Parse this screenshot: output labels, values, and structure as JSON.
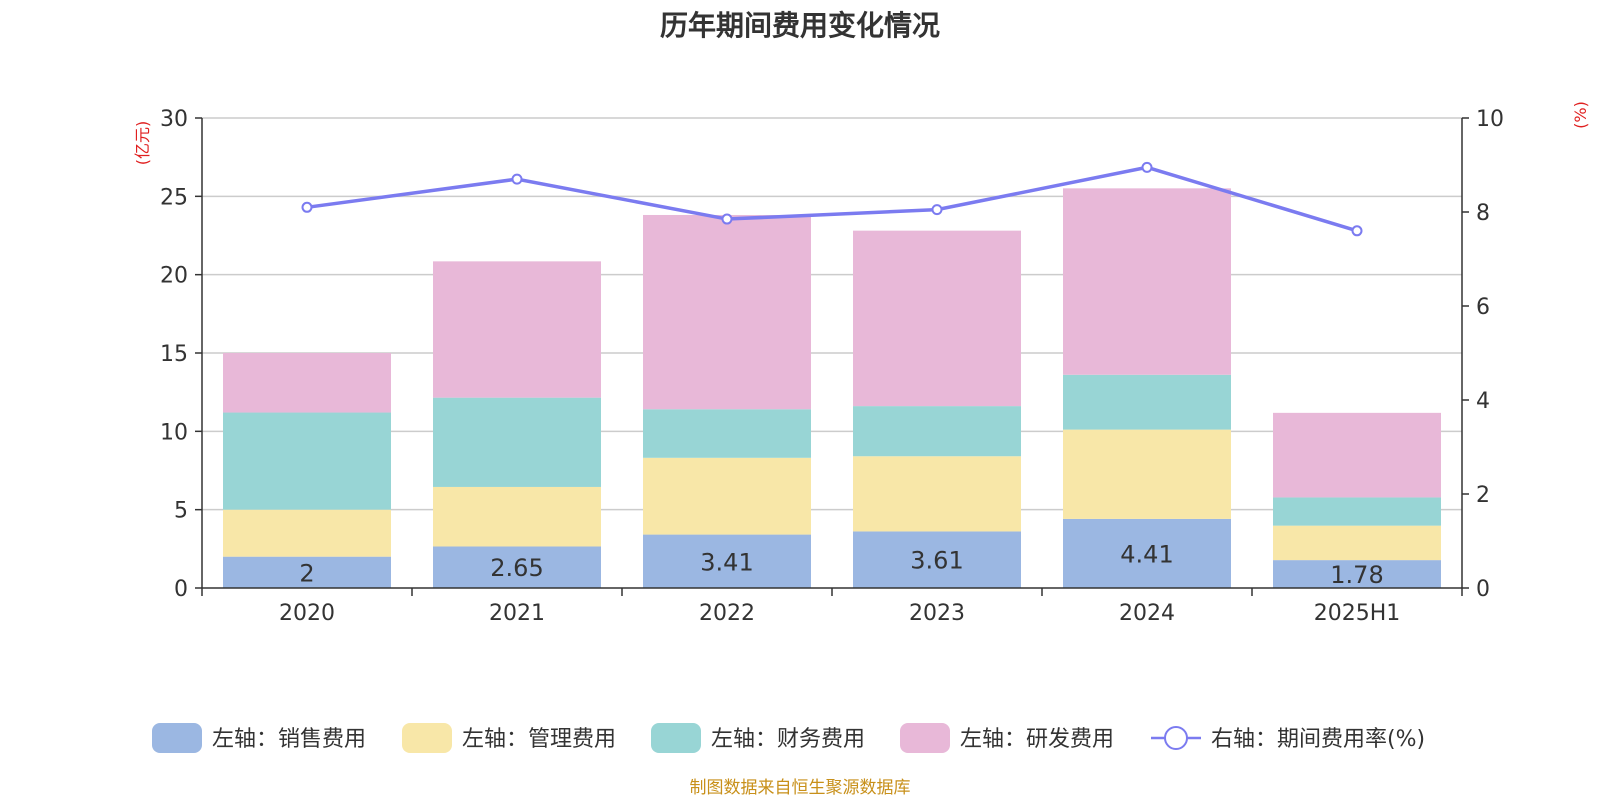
{
  "chart_data": {
    "type": "bar",
    "title": "历年期间费用变化情况",
    "categories": [
      "2020",
      "2021",
      "2022",
      "2023",
      "2024",
      "2025H1"
    ],
    "y_left": {
      "unit_label": "(亿元)",
      "ylim": [
        0,
        30
      ],
      "ticks": [
        0,
        5,
        10,
        15,
        20,
        25,
        30
      ]
    },
    "y_right": {
      "unit_label": "(%)",
      "ylim": [
        0,
        10
      ],
      "ticks": [
        0,
        2,
        4,
        6,
        8,
        10
      ]
    },
    "stacked_series": [
      {
        "name": "左轴：销售费用",
        "color": "#9bb7e2",
        "values": [
          2.0,
          2.65,
          3.41,
          3.61,
          4.41,
          1.78
        ],
        "labels": [
          "2",
          "2.65",
          "3.41",
          "3.61",
          "4.41",
          "1.78"
        ]
      },
      {
        "name": "左轴：管理费用",
        "color": "#f8e7a8",
        "values": [
          3.0,
          3.8,
          4.9,
          4.8,
          5.7,
          2.2
        ]
      },
      {
        "name": "左轴：财务费用",
        "color": "#98d5d5",
        "values": [
          6.2,
          5.7,
          3.1,
          3.2,
          3.5,
          1.8
        ]
      },
      {
        "name": "左轴：研发费用",
        "color": "#e8b8d8",
        "values": [
          3.8,
          8.7,
          12.4,
          11.2,
          11.9,
          5.4
        ]
      }
    ],
    "line_series": {
      "name": "右轴：期间费用率(%)",
      "color": "#7b7bf0",
      "values": [
        8.1,
        8.7,
        7.85,
        8.05,
        8.95,
        7.6
      ]
    },
    "grid": true,
    "legend_position": "bottom"
  },
  "footer": "制图数据来自恒生聚源数据库"
}
